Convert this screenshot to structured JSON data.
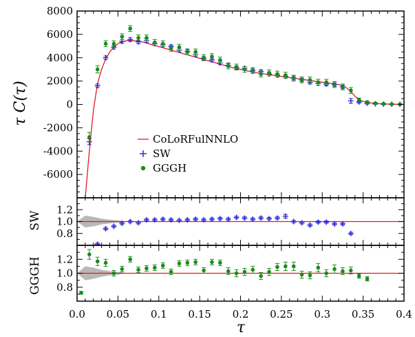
{
  "chart_data": [
    {
      "type": "scatter",
      "panel": "main",
      "ylabel": "τ C(τ)",
      "xlim": [
        0.0,
        0.4
      ],
      "ylim": [
        -8000,
        8000
      ],
      "yticks": [
        "8000",
        "6000",
        "4000",
        "2000",
        "0",
        "-2000",
        "-4000",
        "-6000"
      ],
      "legend_position": "center-left",
      "series": [
        {
          "name": "CoLoRFulNNLO",
          "kind": "line",
          "color": "#e31a1c",
          "x": [
            0.01,
            0.015,
            0.02,
            0.025,
            0.03,
            0.035,
            0.04,
            0.045,
            0.05,
            0.055,
            0.06,
            0.065,
            0.07,
            0.08,
            0.09,
            0.1,
            0.11,
            0.12,
            0.13,
            0.14,
            0.15,
            0.16,
            0.17,
            0.18,
            0.19,
            0.2,
            0.21,
            0.22,
            0.23,
            0.24,
            0.25,
            0.26,
            0.27,
            0.28,
            0.29,
            0.3,
            0.31,
            0.32,
            0.325,
            0.33,
            0.335,
            0.34,
            0.345,
            0.35,
            0.36,
            0.37,
            0.38,
            0.39,
            0.4
          ],
          "y": [
            -8000,
            -4000,
            -500,
            1800,
            3000,
            3900,
            4500,
            4900,
            5200,
            5350,
            5450,
            5500,
            5450,
            5350,
            5150,
            4950,
            4750,
            4550,
            4350,
            4150,
            3950,
            3750,
            3550,
            3350,
            3150,
            3000,
            2850,
            2700,
            2600,
            2500,
            2400,
            2300,
            2200,
            2100,
            2000,
            1900,
            1800,
            1700,
            1600,
            1400,
            1100,
            700,
            400,
            250,
            120,
            60,
            30,
            10,
            0
          ]
        },
        {
          "name": "SW",
          "kind": "cross",
          "color": "#1f1fe0",
          "x": [
            0.015,
            0.025,
            0.035,
            0.045,
            0.055,
            0.065,
            0.075,
            0.085,
            0.095,
            0.105,
            0.115,
            0.125,
            0.135,
            0.145,
            0.155,
            0.165,
            0.175,
            0.185,
            0.195,
            0.205,
            0.215,
            0.225,
            0.235,
            0.245,
            0.255,
            0.265,
            0.275,
            0.285,
            0.295,
            0.305,
            0.315,
            0.325,
            0.335,
            0.345,
            0.355,
            0.365,
            0.375,
            0.385,
            0.395
          ],
          "y": [
            -3200,
            1600,
            4000,
            4900,
            5400,
            5550,
            5350,
            5450,
            5200,
            5100,
            4950,
            4650,
            4550,
            4250,
            3950,
            3800,
            3550,
            3350,
            3150,
            3100,
            2900,
            2800,
            2600,
            2500,
            2400,
            2250,
            2100,
            1900,
            1800,
            1750,
            1700,
            1500,
            300,
            200,
            100,
            50,
            20,
            10,
            5
          ],
          "yerr": [
            250,
            150,
            150,
            150,
            150,
            150,
            150,
            150,
            150,
            150,
            150,
            150,
            150,
            150,
            150,
            150,
            150,
            150,
            150,
            150,
            150,
            150,
            150,
            150,
            150,
            150,
            150,
            150,
            150,
            150,
            150,
            150,
            200,
            100,
            80,
            60,
            50,
            40,
            40
          ]
        },
        {
          "name": "GGGH",
          "kind": "dot",
          "color": "#1a8c1a",
          "x": [
            0.015,
            0.025,
            0.035,
            0.045,
            0.055,
            0.065,
            0.075,
            0.085,
            0.095,
            0.105,
            0.115,
            0.125,
            0.135,
            0.145,
            0.155,
            0.165,
            0.175,
            0.185,
            0.195,
            0.205,
            0.215,
            0.225,
            0.235,
            0.245,
            0.255,
            0.265,
            0.275,
            0.285,
            0.295,
            0.305,
            0.315,
            0.325,
            0.335,
            0.345,
            0.355,
            0.365,
            0.375,
            0.385,
            0.395
          ],
          "y": [
            -2800,
            3000,
            5200,
            5200,
            5800,
            6500,
            5700,
            5700,
            5300,
            5200,
            4800,
            4900,
            4500,
            4500,
            4000,
            4100,
            3800,
            3300,
            3200,
            3000,
            2900,
            2600,
            2700,
            2600,
            2500,
            2250,
            2100,
            2100,
            1900,
            1900,
            1700,
            1500,
            1200,
            400,
            200,
            100,
            50,
            20,
            10
          ],
          "yerr": [
            400,
            300,
            250,
            250,
            250,
            250,
            250,
            250,
            250,
            250,
            250,
            250,
            250,
            250,
            250,
            250,
            250,
            250,
            250,
            250,
            250,
            250,
            250,
            250,
            250,
            250,
            250,
            250,
            250,
            250,
            250,
            250,
            250,
            150,
            100,
            80,
            60,
            50,
            40
          ]
        }
      ]
    },
    {
      "type": "scatter",
      "panel": "ratio-sw",
      "ylabel": "SW",
      "xlim": [
        0.0,
        0.4
      ],
      "ylim": [
        0.6,
        1.4
      ],
      "yticks": [
        "1.2",
        "1.0",
        "0.8"
      ],
      "reference": 1.0,
      "band": {
        "x": [
          0.0,
          0.01,
          0.02,
          0.03,
          0.04,
          0.05,
          0.06
        ],
        "lower": [
          1.0,
          0.9,
          0.92,
          0.95,
          0.97,
          0.98,
          1.0
        ],
        "upper": [
          1.0,
          1.1,
          1.08,
          1.05,
          1.03,
          1.02,
          1.0
        ]
      },
      "series": [
        {
          "name": "SW",
          "color": "#1f1fe0",
          "x": [
            0.025,
            0.035,
            0.045,
            0.055,
            0.065,
            0.075,
            0.085,
            0.095,
            0.105,
            0.115,
            0.125,
            0.135,
            0.145,
            0.155,
            0.165,
            0.175,
            0.185,
            0.195,
            0.205,
            0.215,
            0.225,
            0.235,
            0.245,
            0.255,
            0.265,
            0.275,
            0.285,
            0.295,
            0.305,
            0.315,
            0.325,
            0.335
          ],
          "y": [
            0.62,
            0.88,
            0.92,
            0.97,
            1.0,
            0.98,
            1.03,
            1.03,
            1.04,
            1.03,
            1.02,
            1.03,
            1.04,
            1.03,
            1.04,
            1.05,
            1.04,
            1.07,
            1.06,
            1.04,
            1.06,
            1.05,
            1.06,
            1.09,
            1.0,
            0.98,
            0.94,
            0.99,
            0.99,
            0.96,
            0.96,
            0.8
          ],
          "yerr": [
            0.02,
            0.02,
            0.02,
            0.02,
            0.02,
            0.02,
            0.02,
            0.02,
            0.02,
            0.02,
            0.02,
            0.02,
            0.02,
            0.02,
            0.02,
            0.02,
            0.02,
            0.02,
            0.02,
            0.02,
            0.02,
            0.02,
            0.02,
            0.03,
            0.02,
            0.02,
            0.02,
            0.02,
            0.02,
            0.02,
            0.02,
            0.02
          ]
        }
      ]
    },
    {
      "type": "scatter",
      "panel": "ratio-gggh",
      "ylabel": "GGGH",
      "xlabel": "τ",
      "xlim": [
        0.0,
        0.4
      ],
      "ylim": [
        0.6,
        1.4
      ],
      "yticks": [
        "1.2",
        "1.0",
        "0.8"
      ],
      "xticks": [
        "0.0",
        "0.05",
        "0.1",
        "0.15",
        "0.2",
        "0.25",
        "0.3",
        "0.35",
        "0.4"
      ],
      "reference": 1.0,
      "band": {
        "x": [
          0.0,
          0.01,
          0.02,
          0.03,
          0.04,
          0.05,
          0.06
        ],
        "lower": [
          1.0,
          0.9,
          0.92,
          0.95,
          0.97,
          0.98,
          1.0
        ],
        "upper": [
          1.0,
          1.1,
          1.08,
          1.05,
          1.03,
          1.02,
          1.0
        ]
      },
      "series": [
        {
          "name": "GGGH",
          "color": "#1a8c1a",
          "x": [
            0.005,
            0.015,
            0.025,
            0.035,
            0.045,
            0.055,
            0.065,
            0.075,
            0.085,
            0.095,
            0.105,
            0.115,
            0.125,
            0.135,
            0.145,
            0.155,
            0.165,
            0.175,
            0.185,
            0.195,
            0.205,
            0.215,
            0.225,
            0.235,
            0.245,
            0.255,
            0.265,
            0.275,
            0.285,
            0.295,
            0.305,
            0.315,
            0.325,
            0.335,
            0.345,
            0.355
          ],
          "y": [
            0.72,
            1.27,
            1.17,
            1.15,
            1.0,
            1.06,
            1.2,
            1.05,
            1.07,
            1.08,
            1.11,
            1.02,
            1.14,
            1.15,
            1.16,
            1.04,
            1.16,
            1.15,
            1.03,
            1.0,
            1.02,
            1.05,
            0.96,
            1.02,
            1.09,
            1.1,
            1.1,
            0.98,
            0.97,
            1.08,
            1.0,
            1.06,
            1.03,
            1.04,
            0.96,
            0.92
          ],
          "yerr": [
            0.02,
            0.07,
            0.06,
            0.05,
            0.04,
            0.04,
            0.04,
            0.04,
            0.04,
            0.04,
            0.04,
            0.04,
            0.04,
            0.04,
            0.04,
            0.04,
            0.04,
            0.04,
            0.05,
            0.05,
            0.05,
            0.05,
            0.05,
            0.05,
            0.05,
            0.06,
            0.06,
            0.05,
            0.05,
            0.06,
            0.05,
            0.06,
            0.05,
            0.05,
            0.03,
            0.03
          ]
        }
      ]
    }
  ]
}
